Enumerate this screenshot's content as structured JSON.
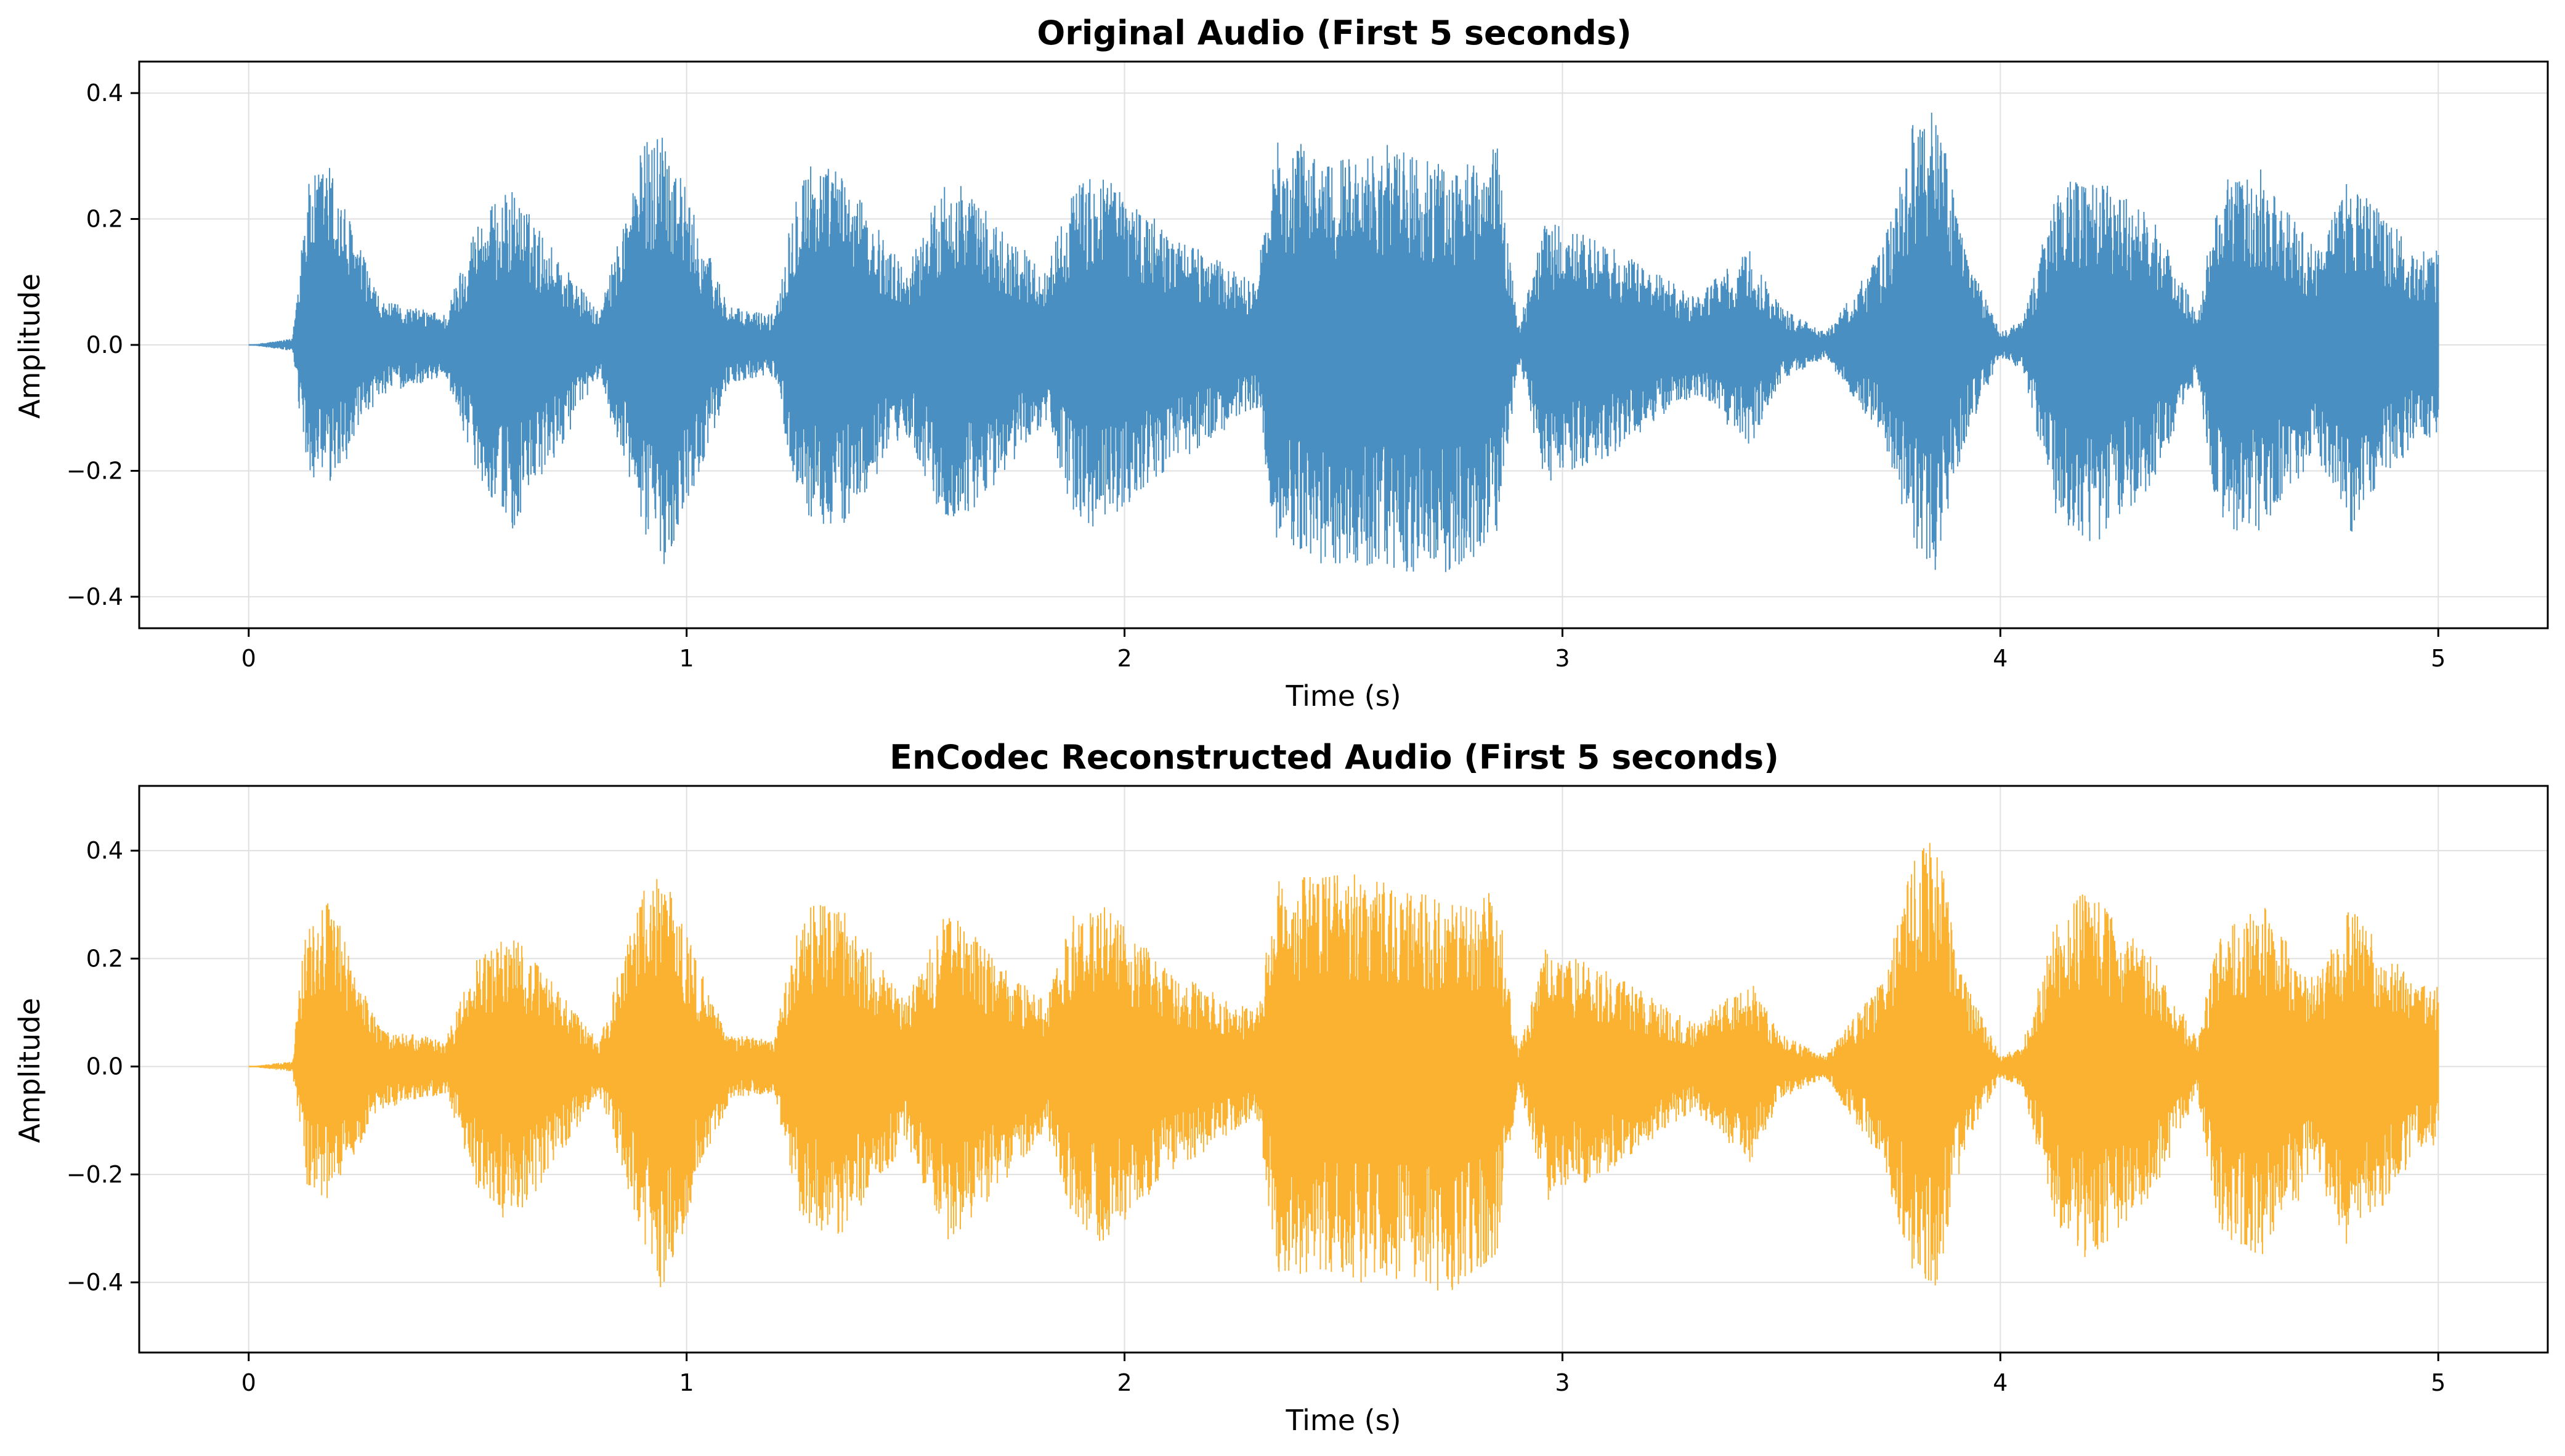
{
  "chart_data": [
    {
      "type": "line",
      "title": "Original Audio (First 5 seconds)",
      "xlabel": "Time (s)",
      "ylabel": "Amplitude",
      "xlim": [
        -0.25,
        5.25
      ],
      "ylim": [
        -0.45,
        0.45
      ],
      "xticks": [
        0,
        1,
        2,
        3,
        4,
        5
      ],
      "xtick_labels": [
        "0",
        "1",
        "2",
        "3",
        "4",
        "5"
      ],
      "yticks": [
        -0.4,
        -0.2,
        0.0,
        0.2,
        0.4
      ],
      "ytick_labels": [
        "−0.4",
        "−0.2",
        "0.0",
        "0.2",
        "0.4"
      ],
      "grid": true,
      "color": "#4a8fc2",
      "series": [
        {
          "envelope_time": [
            0.0,
            0.1,
            0.13,
            0.18,
            0.3,
            0.45,
            0.52,
            0.6,
            0.7,
            0.8,
            0.9,
            0.95,
            1.02,
            1.1,
            1.2,
            1.26,
            1.35,
            1.5,
            1.6,
            1.7,
            1.82,
            1.88,
            1.95,
            2.1,
            2.3,
            2.35,
            2.5,
            2.6,
            2.75,
            2.85,
            2.9,
            2.96,
            3.1,
            3.3,
            3.43,
            3.5,
            3.6,
            3.73,
            3.8,
            3.85,
            3.92,
            4.0,
            4.05,
            4.13,
            4.2,
            4.35,
            4.45,
            4.5,
            4.6,
            4.72,
            4.8,
            4.95,
            5.0
          ],
          "envelope_upper": [
            0.0,
            0.01,
            0.25,
            0.3,
            0.07,
            0.05,
            0.2,
            0.25,
            0.15,
            0.05,
            0.32,
            0.36,
            0.2,
            0.06,
            0.05,
            0.3,
            0.28,
            0.12,
            0.28,
            0.2,
            0.12,
            0.25,
            0.28,
            0.18,
            0.1,
            0.33,
            0.3,
            0.32,
            0.28,
            0.32,
            0.03,
            0.2,
            0.16,
            0.08,
            0.15,
            0.06,
            0.02,
            0.15,
            0.35,
            0.4,
            0.15,
            0.02,
            0.04,
            0.25,
            0.28,
            0.2,
            0.05,
            0.26,
            0.28,
            0.15,
            0.27,
            0.15,
            0.15
          ],
          "envelope_lower": [
            0.0,
            -0.01,
            -0.2,
            -0.24,
            -0.08,
            -0.05,
            -0.2,
            -0.3,
            -0.18,
            -0.05,
            -0.3,
            -0.35,
            -0.22,
            -0.06,
            -0.05,
            -0.27,
            -0.3,
            -0.14,
            -0.3,
            -0.23,
            -0.12,
            -0.27,
            -0.3,
            -0.2,
            -0.1,
            -0.33,
            -0.36,
            -0.36,
            -0.37,
            -0.3,
            -0.03,
            -0.22,
            -0.18,
            -0.08,
            -0.16,
            -0.06,
            -0.02,
            -0.15,
            -0.32,
            -0.38,
            -0.15,
            -0.02,
            -0.04,
            -0.28,
            -0.33,
            -0.22,
            -0.05,
            -0.3,
            -0.3,
            -0.18,
            -0.3,
            -0.15,
            -0.15
          ]
        }
      ]
    },
    {
      "type": "line",
      "title": "EnCodec Reconstructed Audio (First 5 seconds)",
      "xlabel": "Time (s)",
      "ylabel": "Amplitude",
      "xlim": [
        -0.25,
        5.25
      ],
      "ylim": [
        -0.53,
        0.52
      ],
      "xticks": [
        0,
        1,
        2,
        3,
        4,
        5
      ],
      "xtick_labels": [
        "0",
        "1",
        "2",
        "3",
        "4",
        "5"
      ],
      "yticks": [
        -0.4,
        -0.2,
        0.0,
        0.2,
        0.4
      ],
      "ytick_labels": [
        "−0.4",
        "−0.2",
        "0.0",
        "0.2",
        "0.4"
      ],
      "grid": true,
      "color": "#fbb231",
      "series": [
        {
          "envelope_time": [
            0.0,
            0.1,
            0.13,
            0.18,
            0.3,
            0.45,
            0.52,
            0.6,
            0.7,
            0.8,
            0.9,
            0.95,
            1.02,
            1.1,
            1.2,
            1.26,
            1.35,
            1.5,
            1.6,
            1.7,
            1.82,
            1.88,
            1.95,
            2.1,
            2.3,
            2.35,
            2.5,
            2.6,
            2.75,
            2.85,
            2.9,
            2.96,
            3.1,
            3.3,
            3.43,
            3.5,
            3.6,
            3.73,
            3.8,
            3.85,
            3.92,
            4.0,
            4.05,
            4.13,
            4.2,
            4.35,
            4.45,
            4.5,
            4.6,
            4.72,
            4.8,
            4.95,
            5.0
          ],
          "envelope_upper": [
            0.0,
            0.01,
            0.28,
            0.32,
            0.07,
            0.05,
            0.2,
            0.25,
            0.15,
            0.05,
            0.33,
            0.37,
            0.2,
            0.06,
            0.05,
            0.3,
            0.3,
            0.12,
            0.3,
            0.2,
            0.12,
            0.28,
            0.3,
            0.18,
            0.1,
            0.35,
            0.36,
            0.35,
            0.3,
            0.33,
            0.03,
            0.22,
            0.18,
            0.08,
            0.16,
            0.06,
            0.02,
            0.16,
            0.38,
            0.45,
            0.16,
            0.02,
            0.04,
            0.28,
            0.33,
            0.2,
            0.05,
            0.26,
            0.3,
            0.16,
            0.3,
            0.15,
            0.15
          ],
          "envelope_lower": [
            0.0,
            -0.01,
            -0.22,
            -0.25,
            -0.08,
            -0.05,
            -0.22,
            -0.3,
            -0.18,
            -0.05,
            -0.32,
            -0.45,
            -0.22,
            -0.06,
            -0.05,
            -0.28,
            -0.33,
            -0.14,
            -0.33,
            -0.24,
            -0.12,
            -0.28,
            -0.33,
            -0.2,
            -0.1,
            -0.38,
            -0.4,
            -0.4,
            -0.42,
            -0.35,
            -0.03,
            -0.25,
            -0.2,
            -0.08,
            -0.18,
            -0.06,
            -0.02,
            -0.18,
            -0.38,
            -0.42,
            -0.16,
            -0.02,
            -0.04,
            -0.3,
            -0.36,
            -0.24,
            -0.05,
            -0.33,
            -0.35,
            -0.2,
            -0.36,
            -0.16,
            -0.15
          ]
        }
      ]
    }
  ]
}
